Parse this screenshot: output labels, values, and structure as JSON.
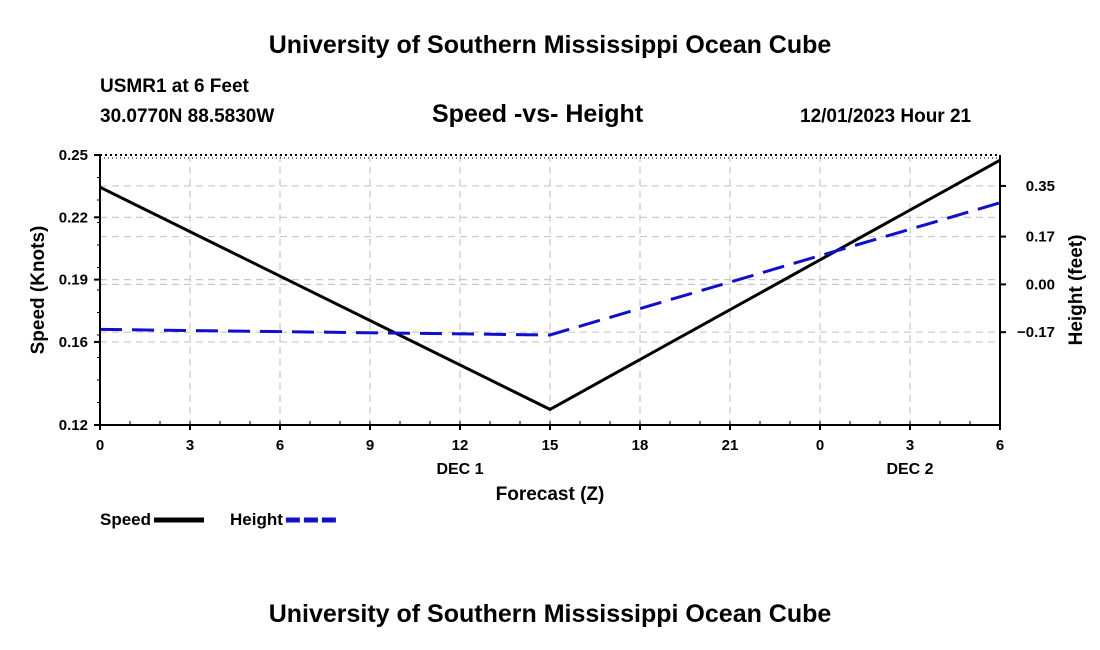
{
  "header": {
    "title": "University of Southern Mississippi Ocean Cube",
    "station": "USMR1 at 6 Feet",
    "coords": "30.0770N  88.5830W",
    "subtitle": "Speed -vs- Height",
    "datetime": "12/01/2023 Hour 21"
  },
  "footer": {
    "title": "University of Southern Mississippi Ocean Cube"
  },
  "chart_data": {
    "type": "line",
    "x_tick_labels": [
      "0",
      "3",
      "6",
      "9",
      "12",
      "15",
      "18",
      "21",
      "0",
      "3",
      "6"
    ],
    "x_date_labels": [
      {
        "label": "DEC 1",
        "tick_index": 4
      },
      {
        "label": "DEC 2",
        "tick_index": 9
      }
    ],
    "xlabel": "Forecast (Z)",
    "xlim": [
      0,
      30
    ],
    "left_axis": {
      "label": "Speed (Knots)",
      "ylim": [
        0.12,
        0.25
      ],
      "ticks": [
        0.12,
        0.16,
        0.19,
        0.22,
        0.25
      ],
      "tick_labels": [
        "0.12",
        "0.16",
        "0.19",
        "0.22",
        "0.25"
      ]
    },
    "right_axis": {
      "label": "Height (feet)",
      "ylim": [
        -0.5,
        0.46
      ],
      "ticks": [
        -0.17,
        0.0,
        0.17,
        0.35
      ],
      "tick_labels": [
        "−0.17",
        "0.00",
        "0.17",
        "0.35"
      ]
    },
    "grid": true,
    "series": [
      {
        "name": "Speed",
        "axis": "left",
        "color": "#000000",
        "dash": "solid",
        "x": [
          0,
          15,
          30
        ],
        "values": [
          0.2345,
          0.1275,
          0.2475
        ]
      },
      {
        "name": "Height",
        "axis": "right",
        "color": "#1010cc",
        "dash": "dashed",
        "x": [
          0,
          15,
          30
        ],
        "values": [
          -0.16,
          -0.18,
          0.29
        ]
      }
    ],
    "legend": {
      "position": "bottom-left",
      "entries": [
        "Speed",
        "Height"
      ]
    }
  }
}
